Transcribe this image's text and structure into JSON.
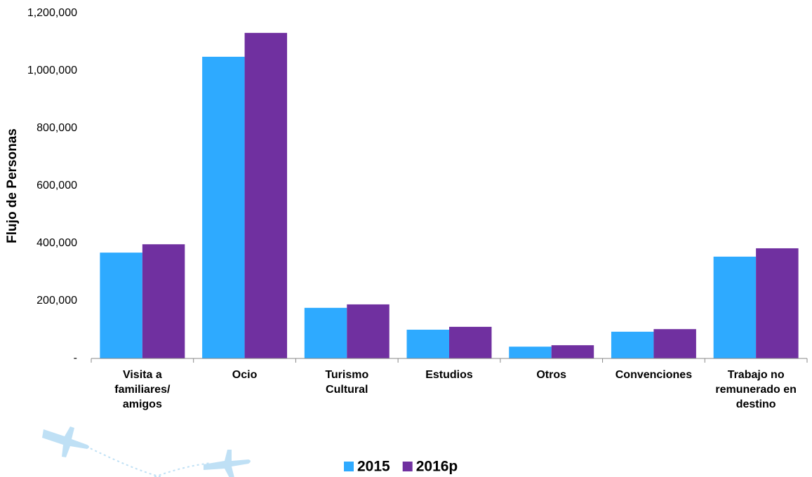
{
  "chart_data": {
    "type": "bar",
    "y_axis_title": "Flujo de Personas",
    "categories": [
      "Visita a familiares/ amigos",
      "Ocio",
      "Turismo Cultural",
      "Estudios",
      "Otros",
      "Convenciones",
      "Trabajo no remunerado en destino"
    ],
    "series": [
      {
        "name": "2015",
        "color": "#2eaaff",
        "values": [
          368000,
          1049000,
          176000,
          100000,
          41000,
          93000,
          354000
        ]
      },
      {
        "name": "2016p",
        "color": "#7030a0",
        "values": [
          397000,
          1132000,
          188000,
          110000,
          46000,
          102000,
          383000
        ]
      }
    ],
    "ylim": [
      0,
      1200000
    ],
    "yticks": [
      {
        "value": 0,
        "label": "-"
      },
      {
        "value": 200000,
        "label": "200,000"
      },
      {
        "value": 400000,
        "label": "400,000"
      },
      {
        "value": 600000,
        "label": "600,000"
      },
      {
        "value": 800000,
        "label": "800,000"
      },
      {
        "value": 1000000,
        "label": "1,000,000"
      },
      {
        "value": 1200000,
        "label": "1,200,000"
      }
    ],
    "grid": false
  }
}
